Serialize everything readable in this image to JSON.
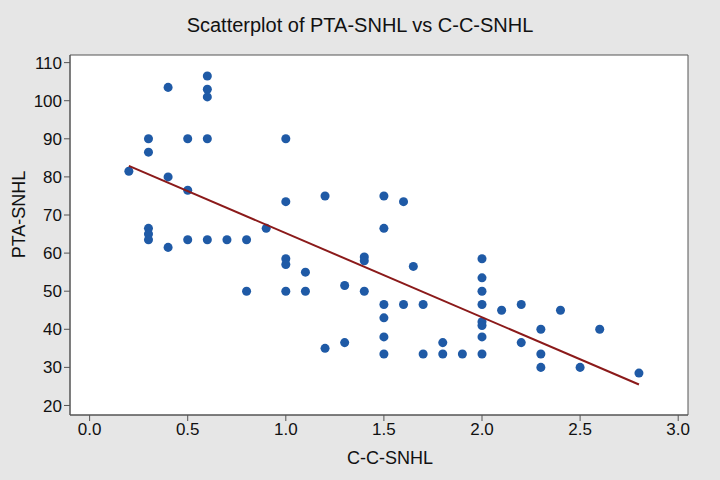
{
  "chart_data": {
    "type": "scatter",
    "title": "Scatterplot of PTA-SNHL vs C-C-SNHL",
    "x_label": "C-C-SNHL",
    "y_label": "PTA-SNHL",
    "xlim": [
      -0.1,
      3.05
    ],
    "ylim": [
      17.5,
      112
    ],
    "xticks": [
      {
        "value": 0,
        "label": "0.0"
      },
      {
        "value": 0.5,
        "label": "0.5"
      },
      {
        "value": 1,
        "label": "1.0"
      },
      {
        "value": 1.5,
        "label": "1.5"
      },
      {
        "value": 2,
        "label": "2.0"
      },
      {
        "value": 2.5,
        "label": "2.5"
      },
      {
        "value": 3,
        "label": "3.0"
      }
    ],
    "yticks": [
      20,
      30,
      40,
      50,
      60,
      70,
      80,
      90,
      100,
      110
    ],
    "grid": false,
    "series": [
      {
        "type": "scatter",
        "marker": "circle",
        "color": "#1f5aa6",
        "x": [
          0.2,
          0.3,
          0.3,
          0.3,
          0.3,
          0.3,
          0.4,
          0.4,
          0.4,
          0.5,
          0.5,
          0.5,
          0.6,
          0.6,
          0.6,
          0.6,
          0.6,
          0.7,
          0.8,
          0.8,
          0.9,
          1.0,
          1.0,
          1.0,
          1.0,
          1.0,
          1.1,
          1.1,
          1.2,
          1.2,
          1.3,
          1.3,
          1.4,
          1.4,
          1.4,
          1.5,
          1.5,
          1.5,
          1.5,
          1.5,
          1.5,
          1.6,
          1.6,
          1.65,
          1.7,
          1.7,
          1.8,
          1.8,
          1.9,
          2.0,
          2.0,
          2.0,
          2.0,
          2.0,
          2.0,
          2.0,
          2.0,
          2.1,
          2.2,
          2.2,
          2.3,
          2.3,
          2.3,
          2.4,
          2.5,
          2.6,
          2.8
        ],
        "values": [
          81.5,
          90,
          86.5,
          66.5,
          65,
          63.5,
          103.5,
          80,
          61.5,
          90,
          76.5,
          63.5,
          106.5,
          103,
          101,
          90,
          63.5,
          63.5,
          63.5,
          50,
          66.5,
          90,
          73.5,
          58.5,
          57,
          50,
          55,
          50,
          75,
          35,
          51.5,
          36.5,
          59,
          58,
          50,
          75,
          66.5,
          46.5,
          43,
          38,
          33.5,
          73.5,
          46.5,
          56.5,
          46.5,
          33.5,
          36.5,
          33.5,
          33.5,
          58.5,
          53.5,
          50,
          46.5,
          42,
          41,
          38,
          33.5,
          45,
          46.5,
          36.5,
          40,
          33.5,
          30,
          45,
          30,
          40,
          28.5
        ]
      },
      {
        "type": "line",
        "line_style": "solid",
        "color": "#8b1a1a",
        "x": [
          0.2,
          2.8
        ],
        "values": [
          82.9,
          25.5
        ]
      }
    ]
  }
}
